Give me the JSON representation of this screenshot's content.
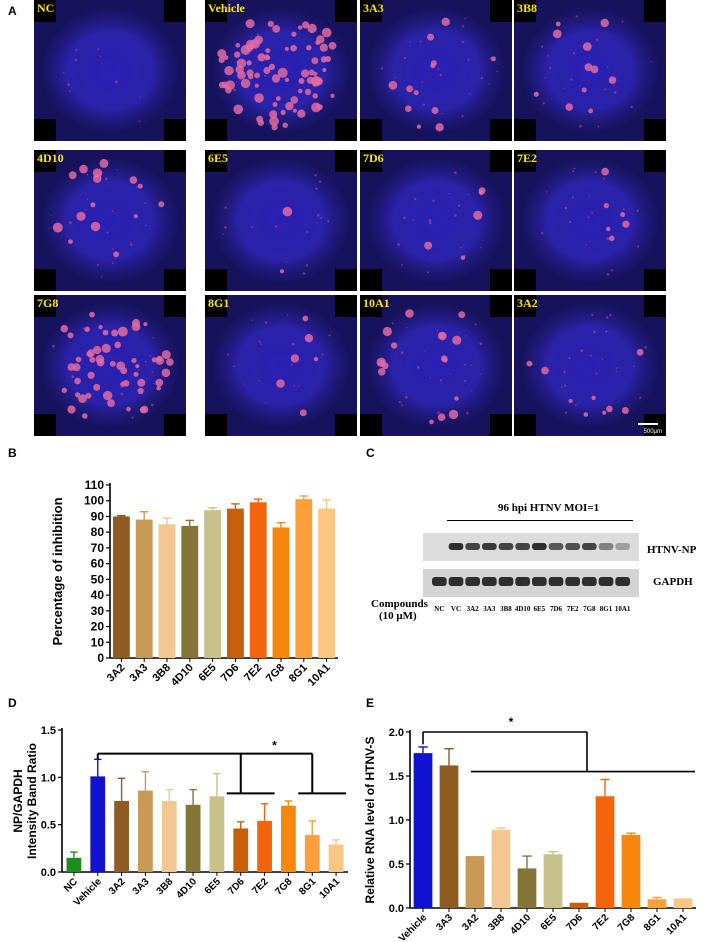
{
  "panels": {
    "A": "A",
    "B": "B",
    "C": "C",
    "D": "D",
    "E": "E"
  },
  "panel_a": {
    "tiles": [
      {
        "label": "NC",
        "infection": 0.02
      },
      {
        "label": "Vehicle",
        "infection": 0.9
      },
      {
        "label": "3A3",
        "infection": 0.3
      },
      {
        "label": "3B8",
        "infection": 0.25
      },
      {
        "label": "4D10",
        "infection": 0.3
      },
      {
        "label": "6E5",
        "infection": 0.12
      },
      {
        "label": "7D6",
        "infection": 0.15
      },
      {
        "label": "7E2",
        "infection": 0.2
      },
      {
        "label": "7G8",
        "infection": 0.7
      },
      {
        "label": "8G1",
        "infection": 0.15
      },
      {
        "label": "10A1",
        "infection": 0.35
      },
      {
        "label": "3A2",
        "infection": 0.25
      }
    ],
    "scale_bar_label": "500μm"
  },
  "panel_c": {
    "header": "96 hpi  HTNV  MOI=1",
    "bands": [
      "HTNV-NP",
      "GAPDH"
    ],
    "compounds_label_line1": "Compounds",
    "compounds_label_line2": "(10 μM)",
    "lanes": [
      "NC",
      "VC",
      "3A2",
      "3A3",
      "3B8",
      "4D10",
      "6E5",
      "7D6",
      "7E2",
      "7G8",
      "8G1",
      "10A1"
    ],
    "np_intensity": [
      0.0,
      0.85,
      0.75,
      0.8,
      0.75,
      0.75,
      0.85,
      0.65,
      0.7,
      0.75,
      0.45,
      0.3
    ],
    "gapdh_intensity": [
      0.85,
      0.85,
      0.85,
      0.85,
      0.85,
      0.85,
      0.85,
      0.85,
      0.85,
      0.85,
      0.85,
      0.85
    ]
  },
  "chart_data": [
    {
      "id": "B",
      "type": "bar",
      "ylabel": "Percentage of inhibition",
      "ylim": [
        0,
        110
      ],
      "yticks": [
        0,
        10,
        20,
        30,
        40,
        50,
        60,
        70,
        80,
        90,
        100,
        110
      ],
      "categories": [
        "3A2",
        "3A3",
        "3B8",
        "4D10",
        "6E5",
        "7D6",
        "7E2",
        "7G8",
        "8G1",
        "10A1"
      ],
      "values": [
        90,
        88,
        85,
        84,
        94,
        95,
        99,
        83,
        101,
        95
      ],
      "errors": [
        0.5,
        5,
        4,
        3.5,
        1.5,
        3,
        2,
        3,
        2,
        5.5
      ],
      "colors": [
        "#8e5b20",
        "#c89a56",
        "#f2c792",
        "#847438",
        "#c7c28c",
        "#c6600d",
        "#f2650d",
        "#f7860d",
        "#ff9f3b",
        "#fbc584"
      ]
    },
    {
      "id": "D",
      "type": "bar",
      "ylabel": [
        "NP/GAPDH",
        "Intensity Band Ratio"
      ],
      "ylim": [
        0,
        1.5
      ],
      "yticks": [
        0.0,
        0.5,
        1.0,
        1.5
      ],
      "ytick_labels": [
        "0.0",
        "0.5",
        "1.0",
        "1.5"
      ],
      "categories": [
        "NC",
        "Vehicle",
        "3A2",
        "3A3",
        "3B8",
        "4D10",
        "6E5",
        "7D6",
        "7E2",
        "7G8",
        "8G1",
        "10A1"
      ],
      "values": [
        0.15,
        1.01,
        0.75,
        0.86,
        0.75,
        0.71,
        0.8,
        0.46,
        0.54,
        0.7,
        0.39,
        0.29
      ],
      "errors": [
        0.06,
        0.18,
        0.24,
        0.2,
        0.12,
        0.16,
        0.24,
        0.07,
        0.18,
        0.05,
        0.15,
        0.05
      ],
      "colors": [
        "#1e8c1e",
        "#1111d0",
        "#8e5b20",
        "#c89a56",
        "#f2c792",
        "#847438",
        "#c7c28c",
        "#c6600d",
        "#f2650d",
        "#f7860d",
        "#ff9f3b",
        "#fbc584"
      ],
      "annotation": "*"
    },
    {
      "id": "E",
      "type": "bar",
      "ylabel": "Relative RNA level of HTNV-S",
      "ylim": [
        0,
        2.0
      ],
      "yticks": [
        0.0,
        0.5,
        1.0,
        1.5,
        2.0
      ],
      "ytick_labels": [
        "0.0",
        "0.5",
        "1.0",
        "1.5",
        "2.0"
      ],
      "categories": [
        "Vehicle",
        "3A3",
        "3A2",
        "3B8",
        "4D10",
        "6E5",
        "7D6",
        "7E2",
        "7G8",
        "8G1",
        "10A1"
      ],
      "values": [
        1.76,
        1.62,
        0.59,
        0.89,
        0.45,
        0.61,
        0.06,
        1.27,
        0.83,
        0.1,
        0.11
      ],
      "errors": [
        0.07,
        0.19,
        0.0,
        0.02,
        0.14,
        0.03,
        0.0,
        0.19,
        0.02,
        0.02,
        0.0
      ],
      "colors": [
        "#1111d0",
        "#8e5b20",
        "#c89a56",
        "#f2c792",
        "#847438",
        "#c7c28c",
        "#c6600d",
        "#f2650d",
        "#f7860d",
        "#ff9f3b",
        "#fbc584"
      ],
      "annotation": "*"
    }
  ]
}
